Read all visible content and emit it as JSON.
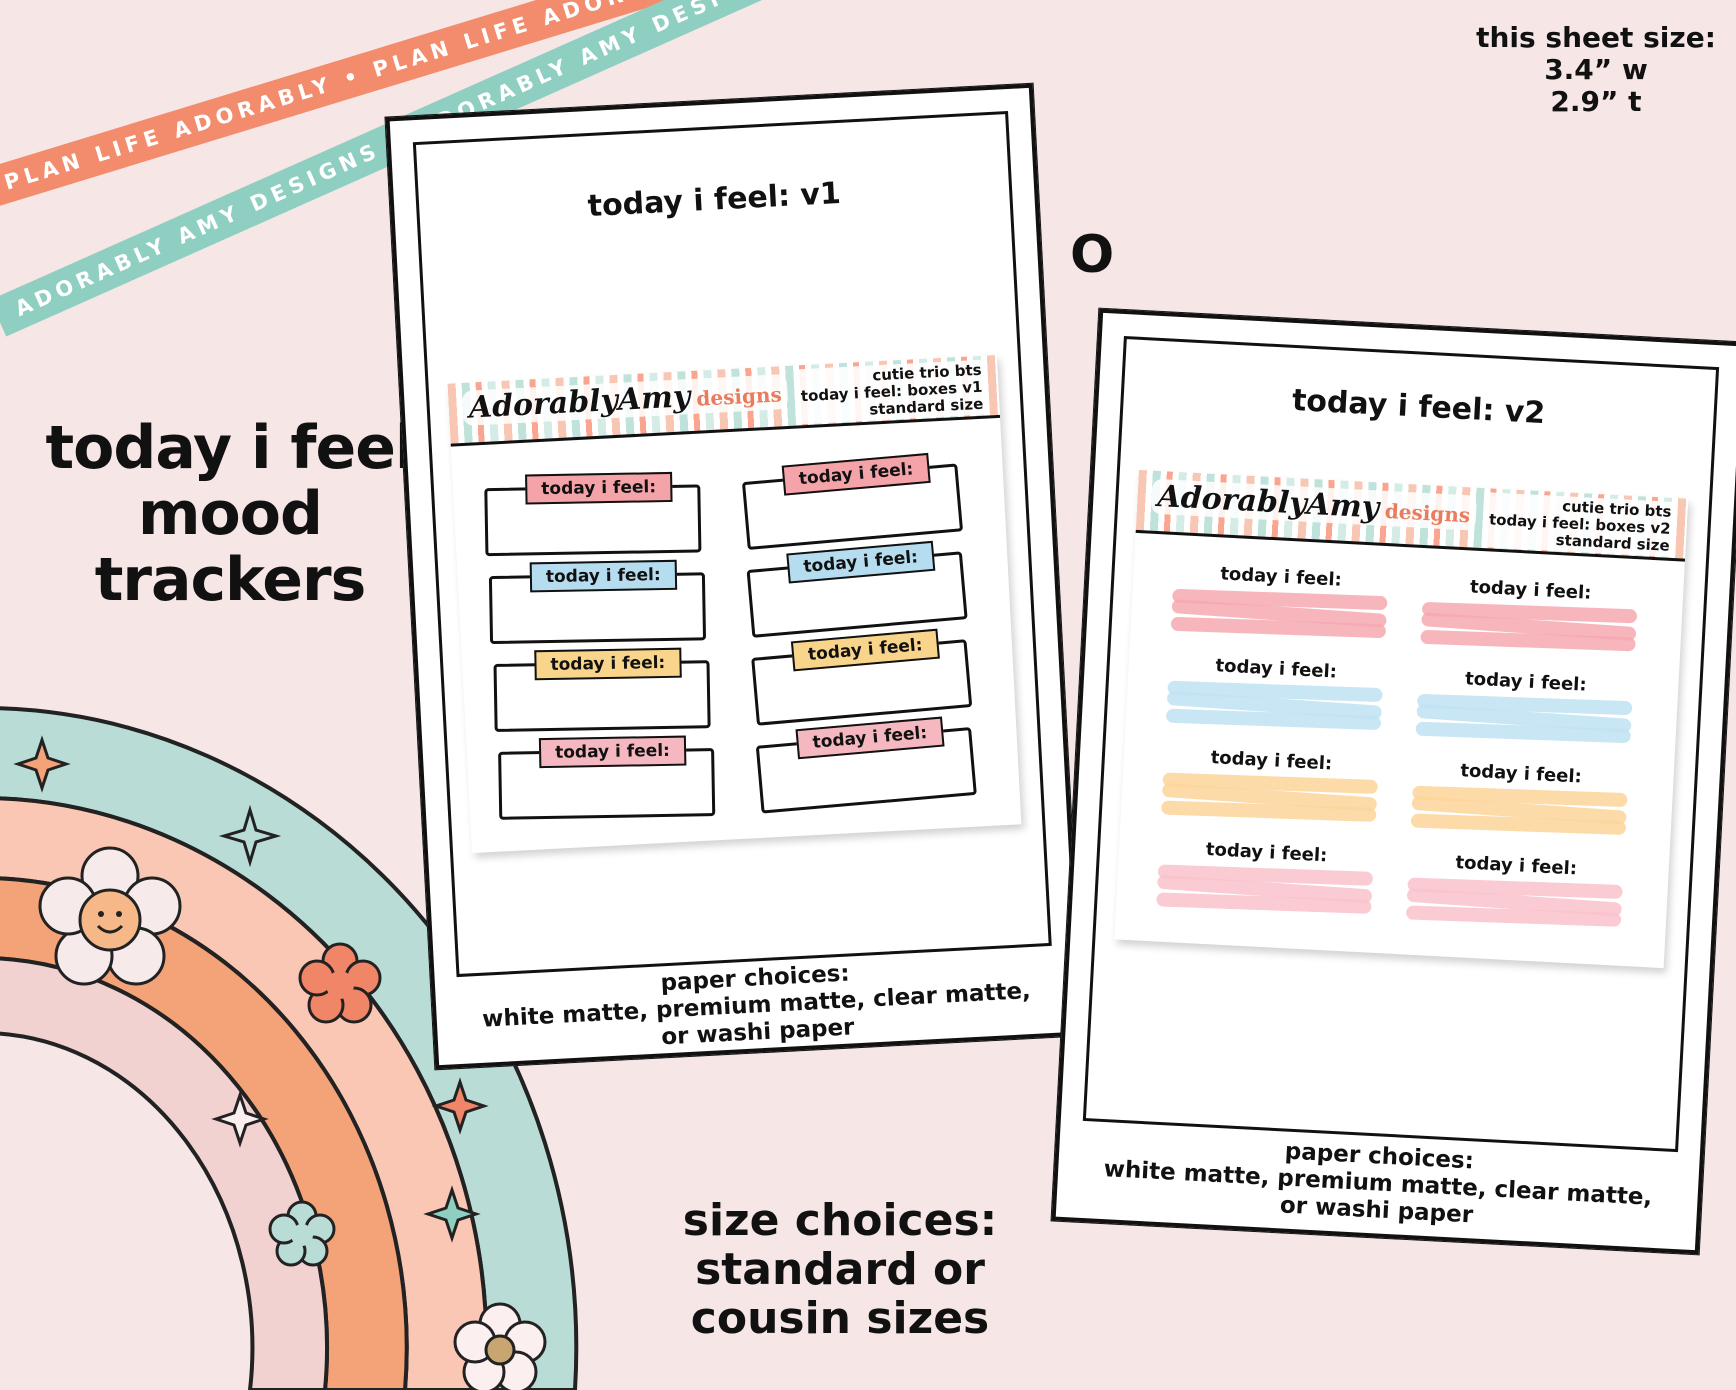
{
  "ribbons": {
    "coral_text": "PLAN LIFE ADORABLY • PLAN LIFE ADORABLY • PLAN LIFE ADORABLY •",
    "teal_text": "ADORABLY AMY DESIGNS • ADORABLY AMY DESIGNS • ADORABLY AMY DESIGNS •",
    "coral_color": "#f28c6d",
    "teal_color": "#8fcfc2"
  },
  "headline": {
    "line1": "today i feel",
    "line2": "mood",
    "line3": "trackers"
  },
  "sheet_size": {
    "label": "this sheet size:",
    "width": "3.4” w",
    "height": "2.9” t"
  },
  "separator": "O",
  "size_choices": {
    "line1": "size choices:",
    "line2": "standard or",
    "line3": "cousin sizes"
  },
  "card_v1": {
    "title": "today i feel: v1",
    "brand": "AdorablyAmy",
    "brand_sub": "designs",
    "info_line1": "cutie trio bts",
    "info_line2": "today i feel: boxes v1",
    "info_line3": "standard size",
    "tag_text": "today i feel:",
    "tag_colors": [
      "#f4a3a8",
      "#f4a3a8",
      "#b5dcef",
      "#b5dcef",
      "#f9d58c",
      "#f9d58c",
      "#f6b8c0",
      "#f6b8c0"
    ],
    "paper_line1": "paper choices:",
    "paper_line2": "white matte, premium matte, clear matte,",
    "paper_line3": "or washi paper"
  },
  "card_v2": {
    "title": "today i feel: v2",
    "brand": "AdorablyAmy",
    "brand_sub": "designs",
    "info_line1": "cutie trio bts",
    "info_line2": "today i feel: boxes v2",
    "info_line3": "standard size",
    "tag_text": "today i feel:",
    "swatch_colors": [
      "#f6a9b0",
      "#f6a9b0",
      "#bfe2f2",
      "#bfe2f2",
      "#fbd59a",
      "#fbd59a",
      "#f9c2cb",
      "#f9c2cb"
    ],
    "paper_line1": "paper choices:",
    "paper_line2": "white matte, premium matte, clear matte,",
    "paper_line3": "or washi paper"
  },
  "rainbow": {
    "colors": [
      "#b9ddd6",
      "#f9c7b3",
      "#f3a377",
      "#f1d2d1"
    ]
  }
}
